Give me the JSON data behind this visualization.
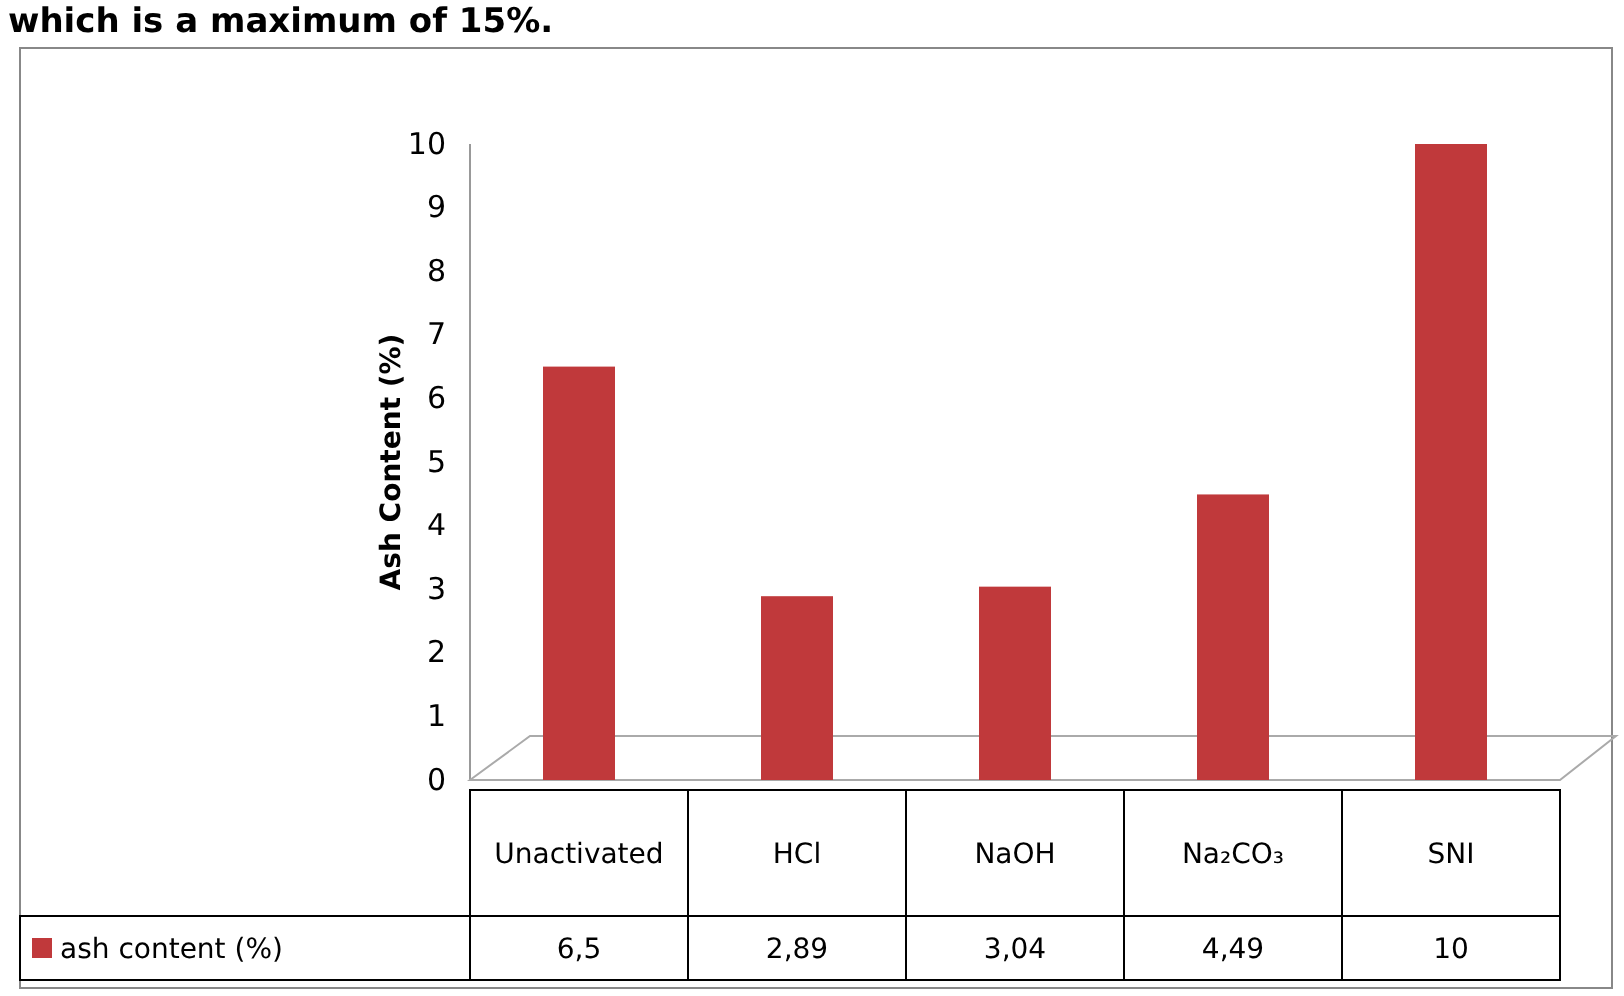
{
  "chart_data": {
    "type": "bar",
    "ylabel": "Ash Content (%)",
    "annotations": [
      "which is a maximum of 15%."
    ],
    "categories": [
      "Unactivated",
      "HCl",
      "NaOH",
      "Na₂CO₃",
      "SNI"
    ],
    "series": [
      {
        "name": "ash content (%)",
        "color": "#c0393b",
        "values": [
          6.5,
          2.89,
          3.04,
          4.49,
          10
        ],
        "value_labels": [
          "6,5",
          "2,89",
          "3,04",
          "4,49",
          "10"
        ]
      }
    ],
    "ylim": [
      0,
      10
    ],
    "yticks": [
      0,
      1,
      2,
      3,
      4,
      5,
      6,
      7,
      8,
      9,
      10
    ],
    "legend": "bottom"
  }
}
